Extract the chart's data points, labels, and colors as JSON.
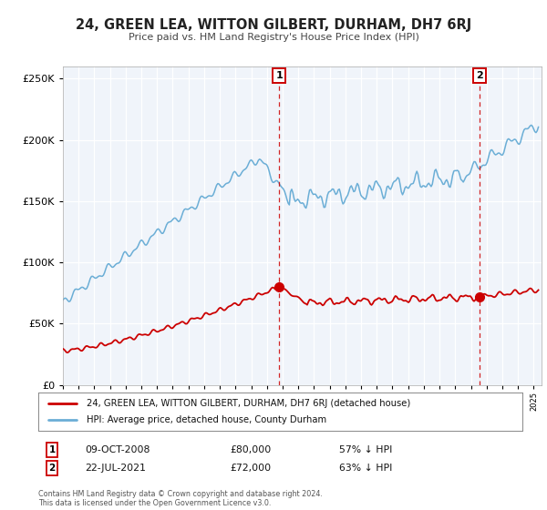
{
  "title": "24, GREEN LEA, WITTON GILBERT, DURHAM, DH7 6RJ",
  "subtitle": "Price paid vs. HM Land Registry's House Price Index (HPI)",
  "legend_line1": "24, GREEN LEA, WITTON GILBERT, DURHAM, DH7 6RJ (detached house)",
  "legend_line2": "HPI: Average price, detached house, County Durham",
  "footer1": "Contains HM Land Registry data © Crown copyright and database right 2024.",
  "footer2": "This data is licensed under the Open Government Licence v3.0.",
  "transaction1_date": "09-OCT-2008",
  "transaction1_price": "£80,000",
  "transaction1_hpi": "57% ↓ HPI",
  "transaction2_date": "22-JUL-2021",
  "transaction2_price": "£72,000",
  "transaction2_hpi": "63% ↓ HPI",
  "red_color": "#cc0000",
  "blue_color": "#6baed6",
  "bg_color": "#f0f4fa",
  "marker1_x": 2008.78,
  "marker1_y_red": 80000,
  "marker2_x": 2021.55,
  "marker2_y_red": 72000,
  "vline1_x": 2008.78,
  "vline2_x": 2021.55,
  "ylim": [
    0,
    260000
  ],
  "xlim_start": 1995,
  "xlim_end": 2025.5
}
